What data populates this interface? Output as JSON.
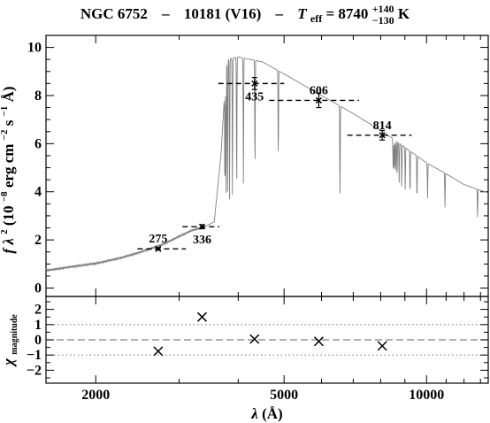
{
  "chart_data": [
    {
      "type": "line",
      "title": {
        "object": "NGC 6752",
        "sep1": "–",
        "star": "10181 (V16)",
        "sep2": "–",
        "teff_symbol": "T",
        "teff_sub": "eff",
        "teff_eq": " = 8740",
        "teff_plus": "+140",
        "teff_minus": "−130",
        "teff_unit": " K"
      },
      "ylabel": {
        "prefix": "f",
        "lambda": "λ",
        "power": "2",
        "rest": " (10",
        "exp1": "−8",
        "units1": " erg cm",
        "exp2": "−2",
        "units2": " s",
        "exp3": "−1",
        "units3": " Å)"
      },
      "xscale": "log",
      "xlim": [
        1570,
        13500
      ],
      "ylim": [
        -0.35,
        10.5
      ],
      "yticks": [
        0,
        2,
        4,
        6,
        8,
        10
      ],
      "ytick_labels": [
        "0",
        "2",
        "4",
        "6",
        "8",
        "10"
      ],
      "grid": false,
      "model_spectrum_color": "#808080",
      "continuum_anchors": [
        [
          1600,
          0.75
        ],
        [
          1800,
          0.9
        ],
        [
          2000,
          1.02
        ],
        [
          2200,
          1.2
        ],
        [
          2400,
          1.4
        ],
        [
          2600,
          1.62
        ],
        [
          2800,
          1.85
        ],
        [
          3000,
          2.15
        ],
        [
          3200,
          2.4
        ],
        [
          3400,
          2.55
        ],
        [
          3560,
          2.75
        ],
        [
          3680,
          5.6
        ],
        [
          3780,
          9.5
        ],
        [
          4000,
          9.6
        ],
        [
          4500,
          9.4
        ],
        [
          5000,
          8.9
        ],
        [
          6000,
          8.0
        ],
        [
          7000,
          7.25
        ],
        [
          8000,
          6.55
        ],
        [
          8500,
          6.2
        ],
        [
          9000,
          5.85
        ],
        [
          10000,
          5.2
        ],
        [
          11000,
          4.75
        ],
        [
          12000,
          4.3
        ],
        [
          13500,
          3.95
        ]
      ],
      "balmer_lines": [
        {
          "wavelength": 3750,
          "depth": 0.55
        },
        {
          "wavelength": 3771,
          "depth": 0.58
        },
        {
          "wavelength": 3798,
          "depth": 0.6
        },
        {
          "wavelength": 3835,
          "depth": 0.62
        },
        {
          "wavelength": 3889,
          "depth": 0.62
        },
        {
          "wavelength": 3970,
          "depth": 0.6
        },
        {
          "wavelength": 4102,
          "depth": 0.55
        },
        {
          "wavelength": 4340,
          "depth": 0.5
        },
        {
          "wavelength": 4861,
          "depth": 0.42
        },
        {
          "wavelength": 6563,
          "depth": 0.52
        }
      ],
      "paschen_lines": [
        {
          "wavelength": 8500,
          "depth": 0.2
        },
        {
          "wavelength": 8545,
          "depth": 0.22
        },
        {
          "wavelength": 8598,
          "depth": 0.24
        },
        {
          "wavelength": 8665,
          "depth": 0.26
        },
        {
          "wavelength": 8750,
          "depth": 0.28
        },
        {
          "wavelength": 8863,
          "depth": 0.3
        },
        {
          "wavelength": 9015,
          "depth": 0.32
        },
        {
          "wavelength": 9229,
          "depth": 0.34
        },
        {
          "wavelength": 9546,
          "depth": 0.35
        },
        {
          "wavelength": 10049,
          "depth": 0.28
        },
        {
          "wavelength": 10938,
          "depth": 0.3
        },
        {
          "wavelength": 12818,
          "depth": 0.3
        }
      ],
      "photometry": [
        {
          "label": "275",
          "x": 2710,
          "xerr": [
            2450,
            3100
          ],
          "y": 1.63,
          "yerr": 0.05,
          "label_side": "above"
        },
        {
          "label": "336",
          "x": 3355,
          "xerr": [
            3050,
            3650
          ],
          "y": 2.55,
          "yerr": 0.08,
          "label_side": "below"
        },
        {
          "label": "435",
          "x": 4330,
          "xerr": [
            3630,
            5000
          ],
          "y": 8.5,
          "yerr": 0.25,
          "label_side": "below"
        },
        {
          "label": "606",
          "x": 5920,
          "xerr": [
            4650,
            7200
          ],
          "y": 7.8,
          "yerr": 0.3,
          "label_side": "above"
        },
        {
          "label": "814",
          "x": 8060,
          "xerr": [
            6800,
            9300
          ],
          "y": 6.35,
          "yerr": 0.2,
          "label_side": "above"
        }
      ]
    },
    {
      "type": "scatter",
      "ylabel": {
        "chi": "χ",
        "sub": "magnitude"
      },
      "xlabel": {
        "lambda": "λ",
        "unit": " (Å)"
      },
      "xscale": "log",
      "xlim": [
        1570,
        13500
      ],
      "ylim": [
        -2.85,
        2.85
      ],
      "xticks": [
        2000,
        5000,
        10000
      ],
      "xtick_labels": [
        "2000",
        "5000",
        "10000"
      ],
      "yticks": [
        -2,
        -1,
        0,
        1,
        2
      ],
      "ytick_labels": [
        "−2",
        "−1",
        "0",
        "1",
        "2"
      ],
      "reference_lines": [
        {
          "y": 0,
          "style": "dashed"
        },
        {
          "y": 1,
          "style": "dotted"
        },
        {
          "y": -1,
          "style": "dotted"
        }
      ],
      "points": [
        {
          "x": 2710,
          "y": -0.75
        },
        {
          "x": 3355,
          "y": 1.5
        },
        {
          "x": 4330,
          "y": 0.05
        },
        {
          "x": 5920,
          "y": -0.1
        },
        {
          "x": 8060,
          "y": -0.4
        }
      ]
    }
  ]
}
